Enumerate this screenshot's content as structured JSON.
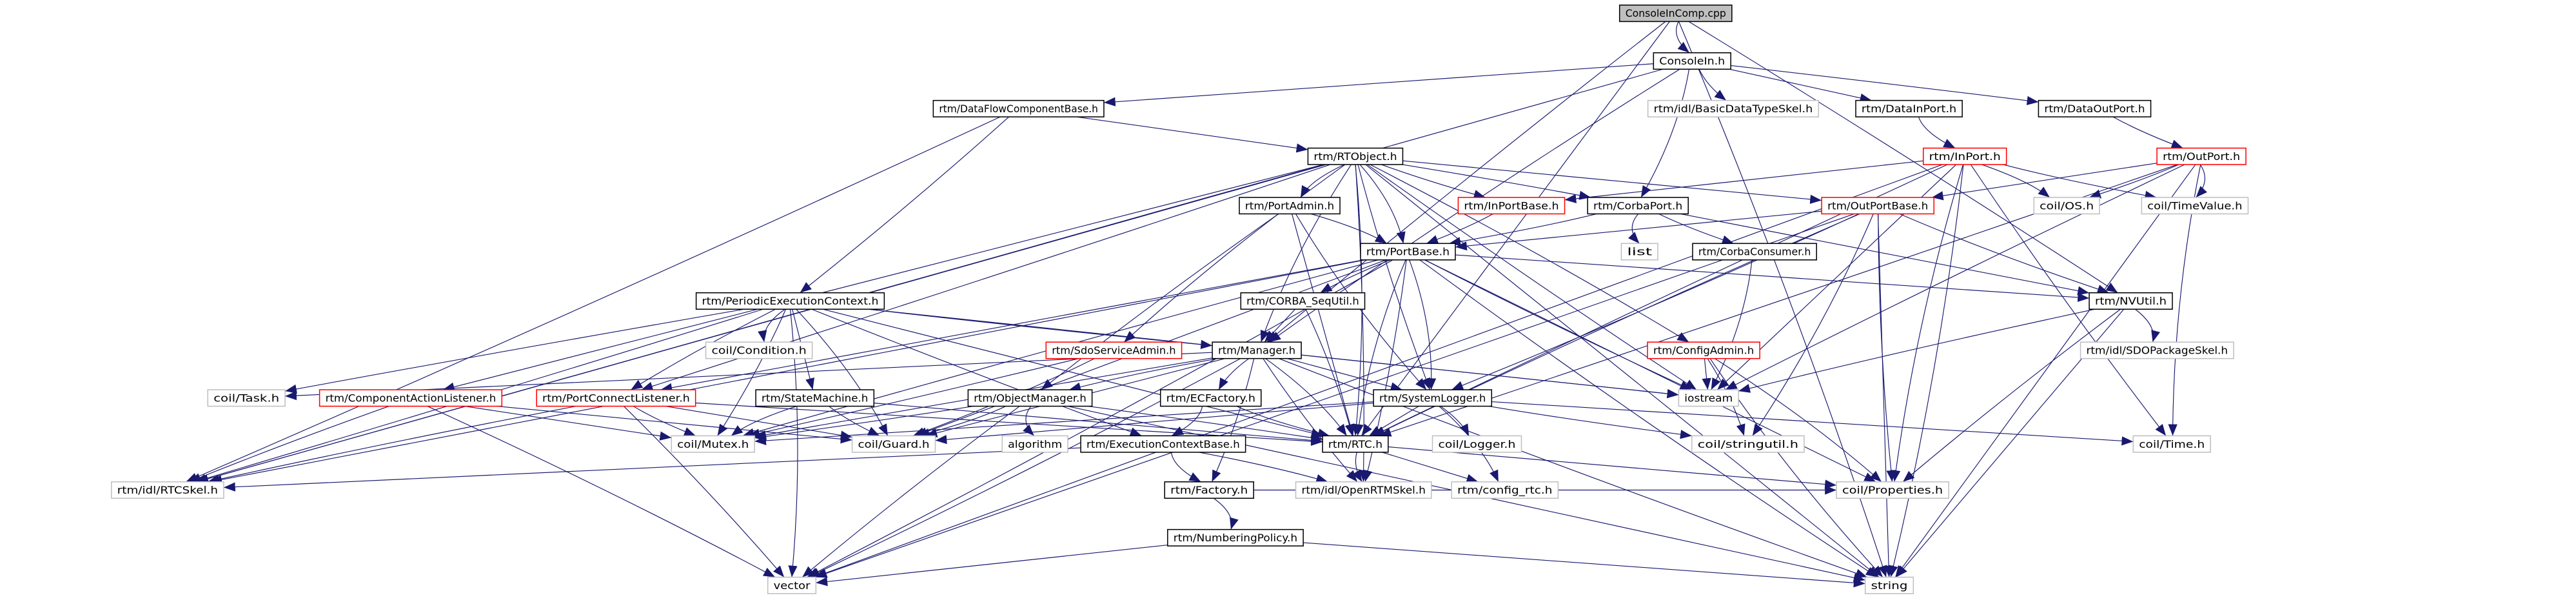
{
  "graph": {
    "edge_color": "#191970",
    "style_colors": {
      "root_fill": "#bfbfbf",
      "documented": "#000000",
      "truncated": "#ff0000",
      "external": "#bfbfbf"
    },
    "nodes": {
      "root": {
        "label": "ConsoleInComp.cpp",
        "style": "root"
      },
      "consolein": {
        "label": "ConsoleIn.h",
        "style": "documented"
      },
      "dfcb": {
        "label": "rtm/DataFlowComponentBase.h",
        "style": "documented"
      },
      "basicdt": {
        "label": "rtm/idl/BasicDataTypeSkel.h",
        "style": "external"
      },
      "datainport": {
        "label": "rtm/DataInPort.h",
        "style": "documented"
      },
      "dataoutport": {
        "label": "rtm/DataOutPort.h",
        "style": "documented"
      },
      "rtobject": {
        "label": "rtm/RTObject.h",
        "style": "documented"
      },
      "inport": {
        "label": "rtm/InPort.h",
        "style": "truncated"
      },
      "outport": {
        "label": "rtm/OutPort.h",
        "style": "truncated"
      },
      "portadmin": {
        "label": "rtm/PortAdmin.h",
        "style": "documented"
      },
      "inportbase": {
        "label": "rtm/InPortBase.h",
        "style": "truncated"
      },
      "corbaport": {
        "label": "rtm/CorbaPort.h",
        "style": "documented"
      },
      "outportbase": {
        "label": "rtm/OutPortBase.h",
        "style": "truncated"
      },
      "os": {
        "label": "coil/OS.h",
        "style": "external"
      },
      "timevalue": {
        "label": "coil/TimeValue.h",
        "style": "external"
      },
      "portbase": {
        "label": "rtm/PortBase.h",
        "style": "documented"
      },
      "list": {
        "label": "list",
        "style": "external"
      },
      "corbaconsumer": {
        "label": "rtm/CorbaConsumer.h",
        "style": "documented"
      },
      "sequtil": {
        "label": "rtm/CORBA_SeqUtil.h",
        "style": "documented"
      },
      "pec": {
        "label": "rtm/PeriodicExecutionContext.h",
        "style": "documented"
      },
      "nvutil": {
        "label": "rtm/NVUtil.h",
        "style": "documented"
      },
      "condition": {
        "label": "coil/Condition.h",
        "style": "external"
      },
      "sdoadmin": {
        "label": "rtm/SdoServiceAdmin.h",
        "style": "truncated"
      },
      "manager": {
        "label": "rtm/Manager.h",
        "style": "documented"
      },
      "configadmin": {
        "label": "rtm/ConfigAdmin.h",
        "style": "truncated"
      },
      "sdopkg": {
        "label": "rtm/idl/SDOPackageSkel.h",
        "style": "external"
      },
      "task": {
        "label": "coil/Task.h",
        "style": "external"
      },
      "cal": {
        "label": "rtm/ComponentActionListener.h",
        "style": "truncated"
      },
      "pcl": {
        "label": "rtm/PortConnectListener.h",
        "style": "truncated"
      },
      "statemachine": {
        "label": "rtm/StateMachine.h",
        "style": "documented"
      },
      "objmgr": {
        "label": "rtm/ObjectManager.h",
        "style": "documented"
      },
      "ecfactory": {
        "label": "rtm/ECFactory.h",
        "style": "documented"
      },
      "syslogger": {
        "label": "rtm/SystemLogger.h",
        "style": "documented"
      },
      "iostream": {
        "label": "iostream",
        "style": "external"
      },
      "mutex": {
        "label": "coil/Mutex.h",
        "style": "external"
      },
      "guard": {
        "label": "coil/Guard.h",
        "style": "external"
      },
      "algorithm": {
        "label": "algorithm",
        "style": "external"
      },
      "ecbase": {
        "label": "rtm/ExecutionContextBase.h",
        "style": "documented"
      },
      "rtc": {
        "label": "rtm/RTC.h",
        "style": "documented"
      },
      "logger": {
        "label": "coil/Logger.h",
        "style": "external"
      },
      "stringutil": {
        "label": "coil/stringutil.h",
        "style": "external"
      },
      "time": {
        "label": "coil/Time.h",
        "style": "external"
      },
      "rtcskel": {
        "label": "rtm/idl/RTCSkel.h",
        "style": "external"
      },
      "factory": {
        "label": "rtm/Factory.h",
        "style": "documented"
      },
      "openrtmskel": {
        "label": "rtm/idl/OpenRTMSkel.h",
        "style": "external"
      },
      "configrtc": {
        "label": "rtm/config_rtc.h",
        "style": "external"
      },
      "properties": {
        "label": "coil/Properties.h",
        "style": "external"
      },
      "numbering": {
        "label": "rtm/NumberingPolicy.h",
        "style": "documented"
      },
      "vector": {
        "label": "vector",
        "style": "external"
      },
      "string": {
        "label": "string",
        "style": "external"
      }
    },
    "edges": [
      [
        "root",
        "consolein"
      ],
      [
        "root",
        "manager"
      ],
      [
        "root",
        "rtc"
      ],
      [
        "root",
        "nvutil"
      ],
      [
        "root",
        "string"
      ],
      [
        "consolein",
        "dfcb"
      ],
      [
        "consolein",
        "basicdt"
      ],
      [
        "consolein",
        "datainport"
      ],
      [
        "consolein",
        "dataoutport"
      ],
      [
        "consolein",
        "corbaport"
      ],
      [
        "consolein",
        "manager"
      ],
      [
        "consolein",
        "rtcskel"
      ],
      [
        "dfcb",
        "rtobject"
      ],
      [
        "dfcb",
        "pec"
      ],
      [
        "dfcb",
        "rtcskel"
      ],
      [
        "datainport",
        "inport"
      ],
      [
        "dataoutport",
        "outport"
      ],
      [
        "rtobject",
        "rtcskel"
      ],
      [
        "rtobject",
        "openrtmskel"
      ],
      [
        "rtobject",
        "portbase"
      ],
      [
        "rtobject",
        "portadmin"
      ],
      [
        "rtobject",
        "inportbase"
      ],
      [
        "rtobject",
        "outportbase"
      ],
      [
        "rtobject",
        "corbaport"
      ],
      [
        "rtobject",
        "configadmin"
      ],
      [
        "rtobject",
        "sdoadmin"
      ],
      [
        "rtobject",
        "syslogger"
      ],
      [
        "rtobject",
        "cal"
      ],
      [
        "rtobject",
        "pcl"
      ],
      [
        "rtobject",
        "rtc"
      ],
      [
        "rtobject",
        "manager"
      ],
      [
        "rtobject",
        "iostream"
      ],
      [
        "rtobject",
        "string"
      ],
      [
        "inport",
        "inportbase"
      ],
      [
        "inport",
        "os"
      ],
      [
        "inport",
        "timevalue"
      ],
      [
        "inport",
        "time"
      ],
      [
        "inport",
        "iostream"
      ],
      [
        "inport",
        "vector"
      ],
      [
        "inport",
        "string"
      ],
      [
        "inport",
        "properties"
      ],
      [
        "inport",
        "rtc"
      ],
      [
        "outport",
        "outportbase"
      ],
      [
        "outport",
        "os"
      ],
      [
        "outport",
        "timevalue"
      ],
      [
        "outport",
        "time"
      ],
      [
        "outport",
        "iostream"
      ],
      [
        "outport",
        "string"
      ],
      [
        "outport",
        "rtc"
      ],
      [
        "portadmin",
        "portbase"
      ],
      [
        "portadmin",
        "syslogger"
      ],
      [
        "portadmin",
        "objmgr"
      ],
      [
        "portadmin",
        "rtc"
      ],
      [
        "inportbase",
        "portbase"
      ],
      [
        "corbaport",
        "portbase"
      ],
      [
        "corbaport",
        "list"
      ],
      [
        "corbaport",
        "corbaconsumer"
      ],
      [
        "corbaport",
        "nvutil"
      ],
      [
        "outportbase",
        "portbase"
      ],
      [
        "outportbase",
        "syslogger"
      ],
      [
        "outportbase",
        "rtc"
      ],
      [
        "outportbase",
        "properties"
      ],
      [
        "outportbase",
        "string"
      ],
      [
        "outportbase",
        "vector"
      ],
      [
        "outportbase",
        "stringutil"
      ],
      [
        "outportbase",
        "nvutil"
      ],
      [
        "portbase",
        "sequtil"
      ],
      [
        "portbase",
        "nvutil"
      ],
      [
        "portbase",
        "pcl"
      ],
      [
        "portbase",
        "syslogger"
      ],
      [
        "portbase",
        "rtc"
      ],
      [
        "portbase",
        "mutex"
      ],
      [
        "portbase",
        "guard"
      ],
      [
        "portbase",
        "rtcskel"
      ],
      [
        "portbase",
        "vector"
      ],
      [
        "portbase",
        "string"
      ],
      [
        "portbase",
        "iostream"
      ],
      [
        "portbase",
        "properties"
      ],
      [
        "portbase",
        "openrtmskel"
      ],
      [
        "corbaconsumer",
        "iostream"
      ],
      [
        "pec",
        "condition"
      ],
      [
        "pec",
        "task"
      ],
      [
        "pec",
        "statemachine"
      ],
      [
        "pec",
        "mutex"
      ],
      [
        "pec",
        "guard"
      ],
      [
        "pec",
        "manager"
      ],
      [
        "pec",
        "ecbase"
      ],
      [
        "pec",
        "rtc"
      ],
      [
        "pec",
        "rtcskel"
      ],
      [
        "pec",
        "vector"
      ],
      [
        "pec",
        "iostream"
      ],
      [
        "pec",
        "pcl"
      ],
      [
        "sequtil",
        "manager"
      ],
      [
        "sequtil",
        "rtc"
      ],
      [
        "nvutil",
        "sdopkg"
      ],
      [
        "nvutil",
        "iostream"
      ],
      [
        "nvutil",
        "properties"
      ],
      [
        "nvutil",
        "string"
      ],
      [
        "sdoadmin",
        "mutex"
      ],
      [
        "sdoadmin",
        "guard"
      ],
      [
        "manager",
        "objmgr"
      ],
      [
        "manager",
        "ecfactory"
      ],
      [
        "manager",
        "syslogger"
      ],
      [
        "manager",
        "factory"
      ],
      [
        "manager",
        "rtc"
      ],
      [
        "manager",
        "task"
      ],
      [
        "manager",
        "mutex"
      ],
      [
        "manager",
        "guard"
      ],
      [
        "manager",
        "iostream"
      ],
      [
        "manager",
        "vector"
      ],
      [
        "manager",
        "string"
      ],
      [
        "manager",
        "openrtmskel"
      ],
      [
        "configadmin",
        "iostream"
      ],
      [
        "configadmin",
        "stringutil"
      ],
      [
        "configadmin",
        "properties"
      ],
      [
        "configadmin",
        "string"
      ],
      [
        "cal",
        "rtcskel"
      ],
      [
        "cal",
        "mutex"
      ],
      [
        "cal",
        "guard"
      ],
      [
        "cal",
        "vector"
      ],
      [
        "pcl",
        "rtcskel"
      ],
      [
        "pcl",
        "mutex"
      ],
      [
        "pcl",
        "guard"
      ],
      [
        "pcl",
        "vector"
      ],
      [
        "pcl",
        "rtc"
      ],
      [
        "statemachine",
        "mutex"
      ],
      [
        "statemachine",
        "guard"
      ],
      [
        "statemachine",
        "rtc"
      ],
      [
        "objmgr",
        "mutex"
      ],
      [
        "objmgr",
        "guard"
      ],
      [
        "objmgr",
        "algorithm"
      ],
      [
        "objmgr",
        "vector"
      ],
      [
        "objmgr",
        "string"
      ],
      [
        "objmgr",
        "rtc"
      ],
      [
        "ecfactory",
        "ecbase"
      ],
      [
        "ecfactory",
        "rtc"
      ],
      [
        "syslogger",
        "mutex"
      ],
      [
        "syslogger",
        "guard"
      ],
      [
        "syslogger",
        "logger"
      ],
      [
        "syslogger",
        "configrtc"
      ],
      [
        "syslogger",
        "stringutil"
      ],
      [
        "syslogger",
        "time"
      ],
      [
        "syslogger",
        "rtc"
      ],
      [
        "ecbase",
        "rtcskel"
      ],
      [
        "ecbase",
        "openrtmskel"
      ],
      [
        "ecbase",
        "factory"
      ],
      [
        "rtc",
        "openrtmskel"
      ],
      [
        "rtc",
        "configrtc"
      ],
      [
        "rtc",
        "properties"
      ],
      [
        "factory",
        "numbering"
      ],
      [
        "factory",
        "properties"
      ],
      [
        "numbering",
        "vector"
      ],
      [
        "numbering",
        "string"
      ]
    ]
  }
}
